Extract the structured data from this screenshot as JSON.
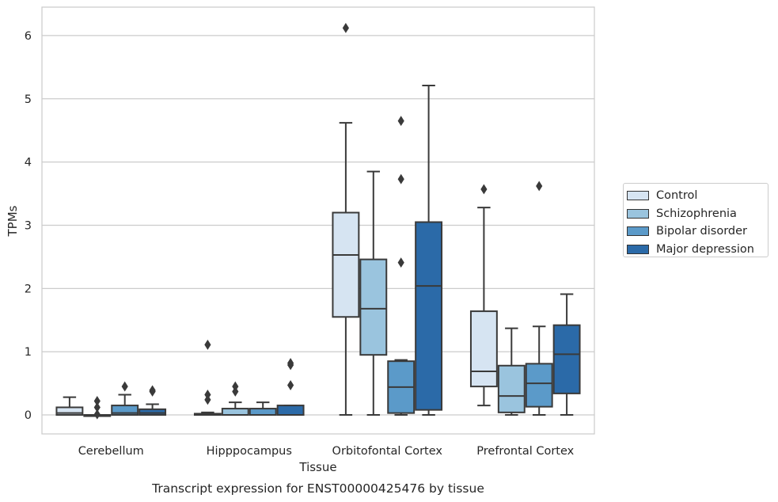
{
  "chart_data": {
    "type": "box",
    "title": "Transcript expression for ENST00000425476 by tissue",
    "xlabel": "Tissue",
    "ylabel": "TPMs",
    "ylim": [
      -0.3,
      6.45
    ],
    "yticks": [
      0,
      1,
      2,
      3,
      4,
      5,
      6
    ],
    "grid": "horizontal",
    "legend_position": "right",
    "categories": [
      "Cerebellum",
      "Hipppocampus",
      "Orbitofontal Cortex",
      "Prefrontal Cortex"
    ],
    "series": [
      {
        "name": "Control",
        "color": "#d6e4f2",
        "boxes": [
          {
            "whislo": 0.0,
            "q1": 0.0,
            "median": 0.03,
            "q3": 0.12,
            "whishi": 0.28,
            "fliers": []
          },
          {
            "whislo": 0.0,
            "q1": 0.0,
            "median": 0.0,
            "q3": 0.02,
            "whishi": 0.04,
            "fliers": [
              0.24,
              0.32,
              1.11
            ]
          },
          {
            "whislo": 0.0,
            "q1": 1.55,
            "median": 2.53,
            "q3": 3.2,
            "whishi": 4.62,
            "fliers": [
              6.12
            ]
          },
          {
            "whislo": 0.15,
            "q1": 0.45,
            "median": 0.69,
            "q3": 1.64,
            "whishi": 3.28,
            "fliers": [
              3.57
            ]
          }
        ]
      },
      {
        "name": "Schizophrenia",
        "color": "#9ac4de",
        "boxes": [
          {
            "whislo": 0.0,
            "q1": 0.0,
            "median": 0.0,
            "q3": 0.0,
            "whishi": 0.0,
            "fliers": [
              0.01,
              0.12,
              0.22
            ]
          },
          {
            "whislo": 0.0,
            "q1": 0.0,
            "median": 0.0,
            "q3": 0.1,
            "whishi": 0.2,
            "fliers": [
              0.37,
              0.45
            ]
          },
          {
            "whislo": 0.0,
            "q1": 0.95,
            "median": 1.68,
            "q3": 2.46,
            "whishi": 3.85,
            "fliers": []
          },
          {
            "whislo": 0.0,
            "q1": 0.04,
            "median": 0.3,
            "q3": 0.78,
            "whishi": 1.37,
            "fliers": []
          }
        ]
      },
      {
        "name": "Bipolar disorder",
        "color": "#5b9ac9",
        "boxes": [
          {
            "whislo": 0.0,
            "q1": 0.0,
            "median": 0.03,
            "q3": 0.15,
            "whishi": 0.32,
            "fliers": [
              0.45
            ]
          },
          {
            "whislo": 0.0,
            "q1": 0.0,
            "median": 0.0,
            "q3": 0.1,
            "whishi": 0.2,
            "fliers": []
          },
          {
            "whislo": 0.0,
            "q1": 0.03,
            "median": 0.44,
            "q3": 0.85,
            "whishi": 0.87,
            "fliers": [
              2.41,
              3.73,
              4.65
            ]
          },
          {
            "whislo": 0.0,
            "q1": 0.13,
            "median": 0.5,
            "q3": 0.81,
            "whishi": 1.4,
            "fliers": [
              3.62
            ]
          }
        ]
      },
      {
        "name": "Major depression",
        "color": "#2b6aa8",
        "boxes": [
          {
            "whislo": 0.0,
            "q1": 0.0,
            "median": 0.03,
            "q3": 0.09,
            "whishi": 0.17,
            "fliers": [
              0.37,
              0.39
            ]
          },
          {
            "whislo": 0.0,
            "q1": 0.0,
            "median": 0.0,
            "q3": 0.15,
            "whishi": 0.15,
            "fliers": [
              0.47,
              0.79,
              0.82
            ]
          },
          {
            "whislo": 0.0,
            "q1": 0.08,
            "median": 2.04,
            "q3": 3.05,
            "whishi": 5.21,
            "fliers": []
          },
          {
            "whislo": 0.0,
            "q1": 0.34,
            "median": 0.96,
            "q3": 1.42,
            "whishi": 1.91,
            "fliers": []
          }
        ]
      }
    ]
  }
}
